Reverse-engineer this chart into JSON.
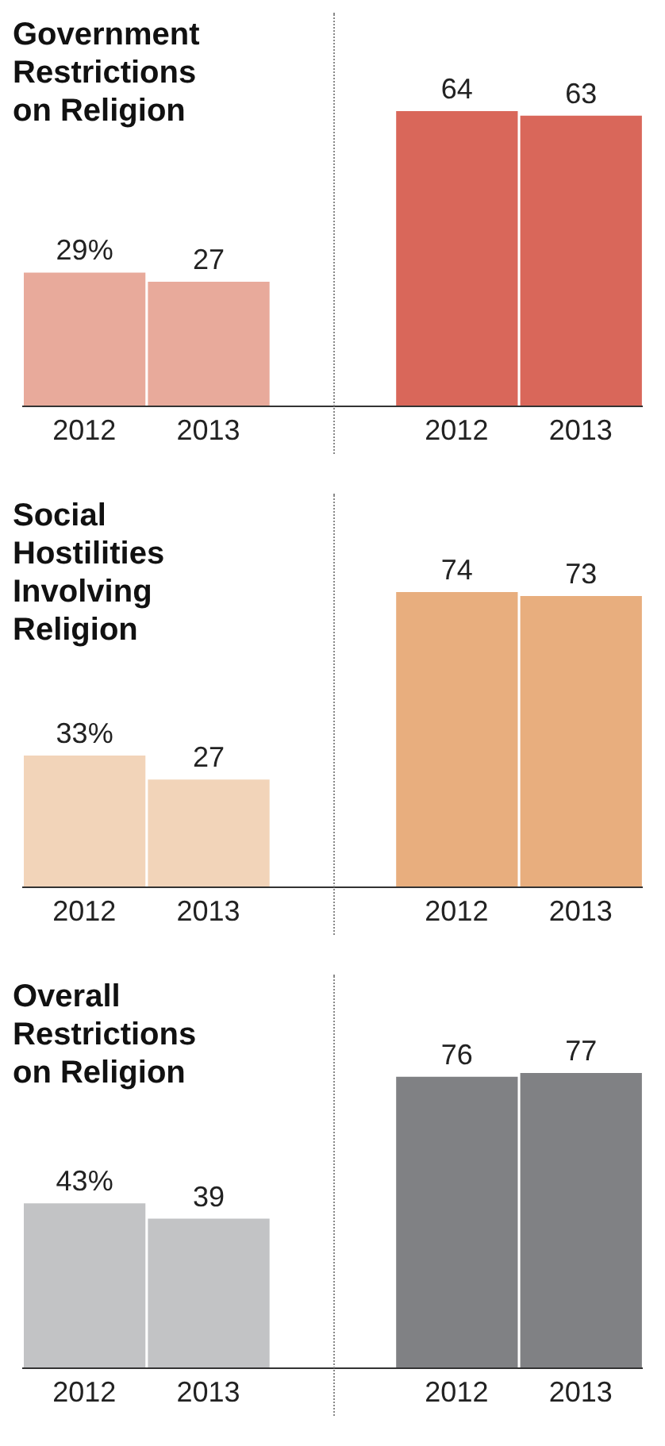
{
  "chart_data": [
    {
      "type": "bar",
      "title": "Government Restrictions on Religion",
      "categories": [
        "2012",
        "2013",
        "2012",
        "2013"
      ],
      "values": [
        29,
        27,
        64,
        63
      ],
      "colors": [
        "#e8aa9b",
        "#e8aa9b",
        "#d9675a",
        "#d9675a"
      ],
      "value_labels": [
        "29%",
        "27",
        "64",
        "63"
      ]
    },
    {
      "type": "bar",
      "title": "Social Hostilities Involving Religion",
      "categories": [
        "2012",
        "2013",
        "2012",
        "2013"
      ],
      "values": [
        33,
        27,
        74,
        73
      ],
      "colors": [
        "#f2d4b9",
        "#f2d4b9",
        "#e8ae7e",
        "#e8ae7e"
      ],
      "value_labels": [
        "33%",
        "27",
        "74",
        "73"
      ]
    },
    {
      "type": "bar",
      "title": "Overall Restrictions on Religion",
      "categories": [
        "2012",
        "2013",
        "2012",
        "2013"
      ],
      "values": [
        43,
        39,
        76,
        77
      ],
      "colors": [
        "#c2c3c5",
        "#c2c3c5",
        "#808184",
        "#808184"
      ],
      "value_labels": [
        "43%",
        "39",
        "76",
        "77"
      ]
    }
  ]
}
